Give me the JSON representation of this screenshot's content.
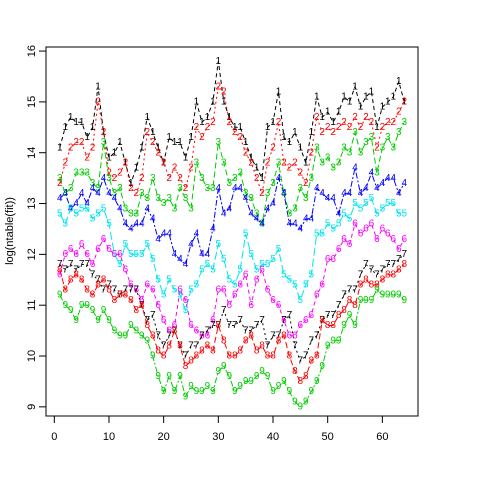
{
  "chart_data": {
    "type": "matplot",
    "ylabel": "log(ntable(fit))",
    "x": [
      1,
      2,
      3,
      4,
      5,
      6,
      7,
      8,
      9,
      10,
      11,
      12,
      13,
      14,
      15,
      16,
      17,
      18,
      19,
      20,
      21,
      22,
      23,
      24,
      25,
      26,
      27,
      28,
      29,
      30,
      31,
      32,
      33,
      34,
      35,
      36,
      37,
      38,
      39,
      40,
      41,
      42,
      43,
      44,
      45,
      46,
      47,
      48,
      49,
      50,
      51,
      52,
      53,
      54,
      55,
      56,
      57,
      58,
      59,
      60,
      61,
      62,
      63,
      64
    ],
    "xlim": [
      -1.52,
      66.52
    ],
    "xticks": [
      0,
      10,
      20,
      30,
      40,
      50,
      60
    ],
    "ylim": [
      8.82,
      16.08
    ],
    "yticks": [
      9,
      10,
      11,
      12,
      13,
      14,
      15,
      16
    ],
    "series": [
      {
        "name": "1",
        "color": "#000000",
        "values": [
          14.1,
          14.5,
          14.7,
          14.6,
          14.6,
          14.3,
          14.5,
          15.3,
          14.4,
          13.9,
          14.0,
          14.2,
          13.8,
          13.4,
          13.7,
          14.1,
          14.7,
          14.4,
          14.1,
          13.8,
          14.3,
          14.2,
          14.2,
          13.9,
          14.3,
          15.0,
          14.6,
          14.7,
          15.0,
          15.8,
          15.0,
          14.7,
          14.5,
          14.5,
          14.2,
          13.9,
          13.7,
          13.5,
          14.5,
          14.6,
          15.2,
          14.3,
          14.2,
          14.4,
          14.1,
          13.8,
          14.4,
          15.1,
          14.7,
          14.8,
          14.6,
          14.8,
          15.1,
          15.0,
          15.3,
          14.9,
          15.1,
          15.2,
          14.5,
          14.9,
          15.0,
          15.1,
          15.4,
          15.0
        ]
      },
      {
        "name": "2",
        "color": "#ff0000",
        "values": [
          13.4,
          13.8,
          14.1,
          14.2,
          14.2,
          13.9,
          14.1,
          15.0,
          14.4,
          13.6,
          13.5,
          13.6,
          13.8,
          13.3,
          13.2,
          13.5,
          14.4,
          14.2,
          14.0,
          13.8,
          13.5,
          13.7,
          13.5,
          13.3,
          13.7,
          14.5,
          14.3,
          14.5,
          14.6,
          15.3,
          15.2,
          14.6,
          14.4,
          14.3,
          14.0,
          13.8,
          13.5,
          13.2,
          13.8,
          14.1,
          14.6,
          13.8,
          13.7,
          13.8,
          13.6,
          13.4,
          14.0,
          14.7,
          14.4,
          14.5,
          14.4,
          14.5,
          14.6,
          14.5,
          14.7,
          14.5,
          14.7,
          14.6,
          14.1,
          14.5,
          14.6,
          14.6,
          14.8,
          15.0
        ]
      },
      {
        "name": "3",
        "color": "#00cd00",
        "values": [
          13.5,
          13.2,
          13.3,
          13.6,
          13.6,
          13.6,
          13.4,
          13.3,
          14.2,
          13.5,
          13.2,
          13.3,
          12.9,
          12.8,
          12.8,
          13.2,
          13.1,
          13.5,
          13.1,
          13.0,
          13.1,
          12.9,
          13.3,
          13.1,
          12.9,
          13.8,
          13.5,
          13.3,
          13.3,
          14.2,
          13.8,
          13.4,
          13.5,
          13.6,
          13.2,
          13.1,
          12.8,
          12.6,
          13.2,
          13.4,
          13.8,
          13.2,
          12.8,
          12.9,
          13.3,
          13.1,
          13.5,
          14.1,
          13.8,
          13.9,
          13.7,
          13.8,
          14.1,
          14.0,
          14.4,
          14.0,
          14.2,
          14.3,
          13.6,
          14.1,
          14.3,
          14.1,
          14.4,
          14.6
        ]
      },
      {
        "name": "4",
        "color": "#0000ff",
        "values": [
          13.1,
          13.2,
          12.9,
          13.0,
          13.2,
          13.0,
          13.3,
          13.2,
          13.5,
          13.2,
          13.1,
          12.9,
          12.6,
          12.5,
          12.6,
          12.6,
          12.9,
          12.7,
          12.3,
          12.4,
          12.4,
          12.0,
          11.9,
          11.8,
          12.2,
          12.4,
          12.0,
          12.0,
          12.5,
          13.3,
          12.8,
          12.9,
          13.3,
          13.3,
          13.1,
          12.8,
          12.7,
          12.6,
          12.9,
          13.0,
          13.5,
          13.2,
          12.6,
          12.6,
          12.5,
          12.7,
          12.7,
          13.3,
          13.2,
          13.1,
          13.1,
          12.8,
          13.2,
          13.2,
          13.7,
          13.2,
          13.3,
          13.6,
          13.3,
          13.4,
          13.5,
          13.5,
          13.2,
          13.4
        ]
      },
      {
        "name": "5",
        "color": "#00e5ee",
        "values": [
          12.8,
          12.6,
          12.9,
          12.8,
          12.9,
          12.9,
          12.7,
          12.8,
          12.9,
          12.6,
          12.0,
          11.8,
          12.2,
          12.0,
          12.0,
          12.0,
          12.2,
          11.9,
          11.5,
          11.2,
          11.5,
          11.3,
          11.2,
          10.9,
          11.3,
          11.4,
          11.7,
          11.8,
          11.7,
          12.2,
          11.9,
          11.5,
          11.4,
          11.7,
          12.4,
          12.0,
          11.7,
          11.8,
          11.8,
          11.9,
          12.1,
          11.6,
          11.5,
          11.4,
          11.1,
          11.4,
          11.6,
          12.4,
          12.4,
          12.6,
          12.5,
          12.6,
          12.8,
          12.7,
          13.0,
          12.9,
          13.0,
          13.1,
          12.8,
          12.9,
          13.0,
          13.0,
          12.8,
          12.8
        ]
      },
      {
        "name": "6",
        "color": "#ff00ff",
        "values": [
          11.6,
          12.0,
          12.1,
          12.0,
          12.2,
          12.0,
          11.8,
          12.1,
          12.3,
          12.1,
          12.0,
          12.0,
          11.7,
          11.4,
          11.3,
          11.1,
          11.4,
          11.3,
          11.0,
          10.7,
          10.5,
          10.6,
          11.3,
          11.1,
          10.6,
          10.5,
          10.4,
          10.4,
          10.7,
          11.3,
          11.3,
          11.0,
          11.2,
          11.4,
          11.6,
          11.0,
          11.5,
          11.7,
          11.3,
          11.1,
          11.0,
          10.7,
          10.4,
          10.4,
          10.6,
          10.7,
          10.8,
          11.2,
          11.4,
          11.9,
          11.9,
          12.1,
          12.3,
          12.2,
          12.6,
          12.4,
          12.5,
          12.6,
          12.3,
          12.5,
          12.4,
          12.3,
          12.1,
          12.3
        ]
      },
      {
        "name": "7",
        "color": "#000000",
        "values": [
          11.8,
          11.7,
          11.8,
          11.7,
          11.8,
          11.8,
          11.6,
          11.5,
          11.3,
          11.4,
          11.3,
          11.2,
          11.3,
          11.3,
          11.3,
          11.0,
          10.7,
          10.8,
          10.4,
          10.2,
          10.4,
          10.5,
          10.2,
          10.0,
          10.2,
          10.2,
          10.4,
          10.5,
          10.6,
          10.6,
          10.9,
          10.6,
          10.6,
          10.7,
          10.5,
          10.5,
          10.6,
          10.7,
          10.2,
          10.4,
          10.4,
          10.7,
          10.8,
          10.2,
          9.9,
          10.0,
          10.3,
          10.4,
          10.7,
          10.8,
          10.8,
          11.0,
          11.2,
          11.3,
          11.3,
          11.6,
          11.8,
          11.7,
          11.6,
          11.7,
          11.8,
          11.8,
          11.9,
          12.0
        ]
      },
      {
        "name": "8",
        "color": "#ff0000",
        "values": [
          11.7,
          11.3,
          11.5,
          11.6,
          11.5,
          11.3,
          11.2,
          11.4,
          11.5,
          11.3,
          11.1,
          11.2,
          11.2,
          11.1,
          10.9,
          11.0,
          10.6,
          10.4,
          10.1,
          10.0,
          10.2,
          10.5,
          10.2,
          9.8,
          9.9,
          10.0,
          10.1,
          10.2,
          10.1,
          10.6,
          10.3,
          10.0,
          10.0,
          10.1,
          10.3,
          10.4,
          10.1,
          10.2,
          10.0,
          10.0,
          10.3,
          10.4,
          10.0,
          9.7,
          9.5,
          9.6,
          9.9,
          10.0,
          10.7,
          10.6,
          10.6,
          10.8,
          10.9,
          11.1,
          11.0,
          11.4,
          11.5,
          11.4,
          11.4,
          11.5,
          11.6,
          11.6,
          11.7,
          11.8
        ]
      },
      {
        "name": "9",
        "color": "#00cd00",
        "values": [
          11.2,
          11.0,
          10.9,
          10.7,
          11.0,
          11.0,
          10.9,
          10.7,
          10.9,
          10.7,
          10.5,
          10.4,
          10.4,
          10.6,
          10.5,
          10.4,
          10.3,
          10.0,
          9.6,
          9.3,
          9.6,
          9.3,
          9.6,
          9.2,
          9.4,
          9.3,
          9.3,
          9.4,
          9.3,
          9.7,
          9.8,
          9.6,
          9.3,
          9.4,
          9.5,
          9.5,
          9.6,
          9.7,
          9.6,
          9.3,
          9.4,
          9.5,
          9.3,
          9.1,
          9.0,
          9.1,
          9.3,
          9.5,
          9.8,
          10.2,
          10.3,
          10.3,
          10.6,
          10.8,
          10.6,
          11.1,
          11.1,
          11.1,
          11.3,
          11.2,
          11.2,
          11.2,
          11.2,
          11.1
        ]
      }
    ]
  }
}
